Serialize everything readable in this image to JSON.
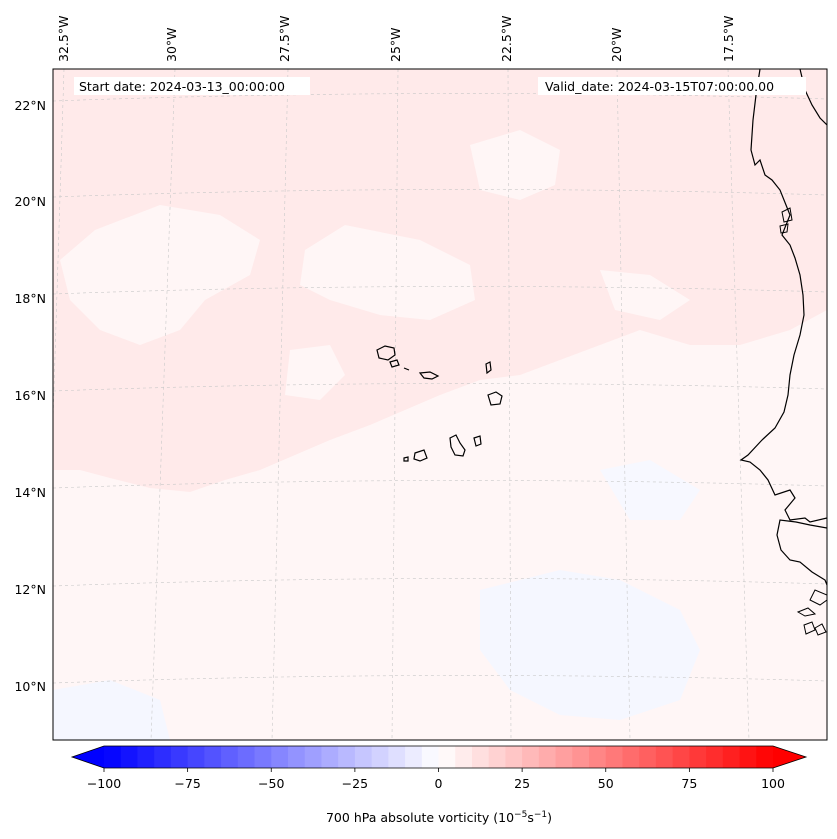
{
  "map": {
    "region": "Eastern tropical North Atlantic, Cape Verde Islands and West African coast",
    "start_date": "Start date: 2024-03-13_00:00:00",
    "valid_date": "Valid_date: 2024-03-15T07:00:00.00",
    "lon_labels": [
      "32.5°W",
      "30°W",
      "27.5°W",
      "25°W",
      "22.5°W",
      "20°W",
      "17.5°W"
    ],
    "lat_labels": [
      "22°N",
      "20°N",
      "18°N",
      "16°N",
      "14°N",
      "12°N",
      "10°N"
    ],
    "gridlines": true
  },
  "colorbar": {
    "label_prefix": "700 hPa absolute vorticity (10",
    "label_exp1": "−5",
    "label_mid": "s",
    "label_exp2": "−1",
    "label_suffix": ")",
    "ticks": [
      "−100",
      "−75",
      "−50",
      "−25",
      "0",
      "25",
      "50",
      "75",
      "100"
    ],
    "min": -100,
    "max": 100,
    "step": 5,
    "extend": "both",
    "colormap": "bwr",
    "low_color": "#0000ff",
    "mid_color": "#ffffff",
    "high_color": "#ff0000"
  },
  "field": {
    "background_color": "#fff6f6",
    "positive_color": "#ffeaea",
    "negative_color": "#f5f7ff",
    "coastline_color": "#000000"
  }
}
